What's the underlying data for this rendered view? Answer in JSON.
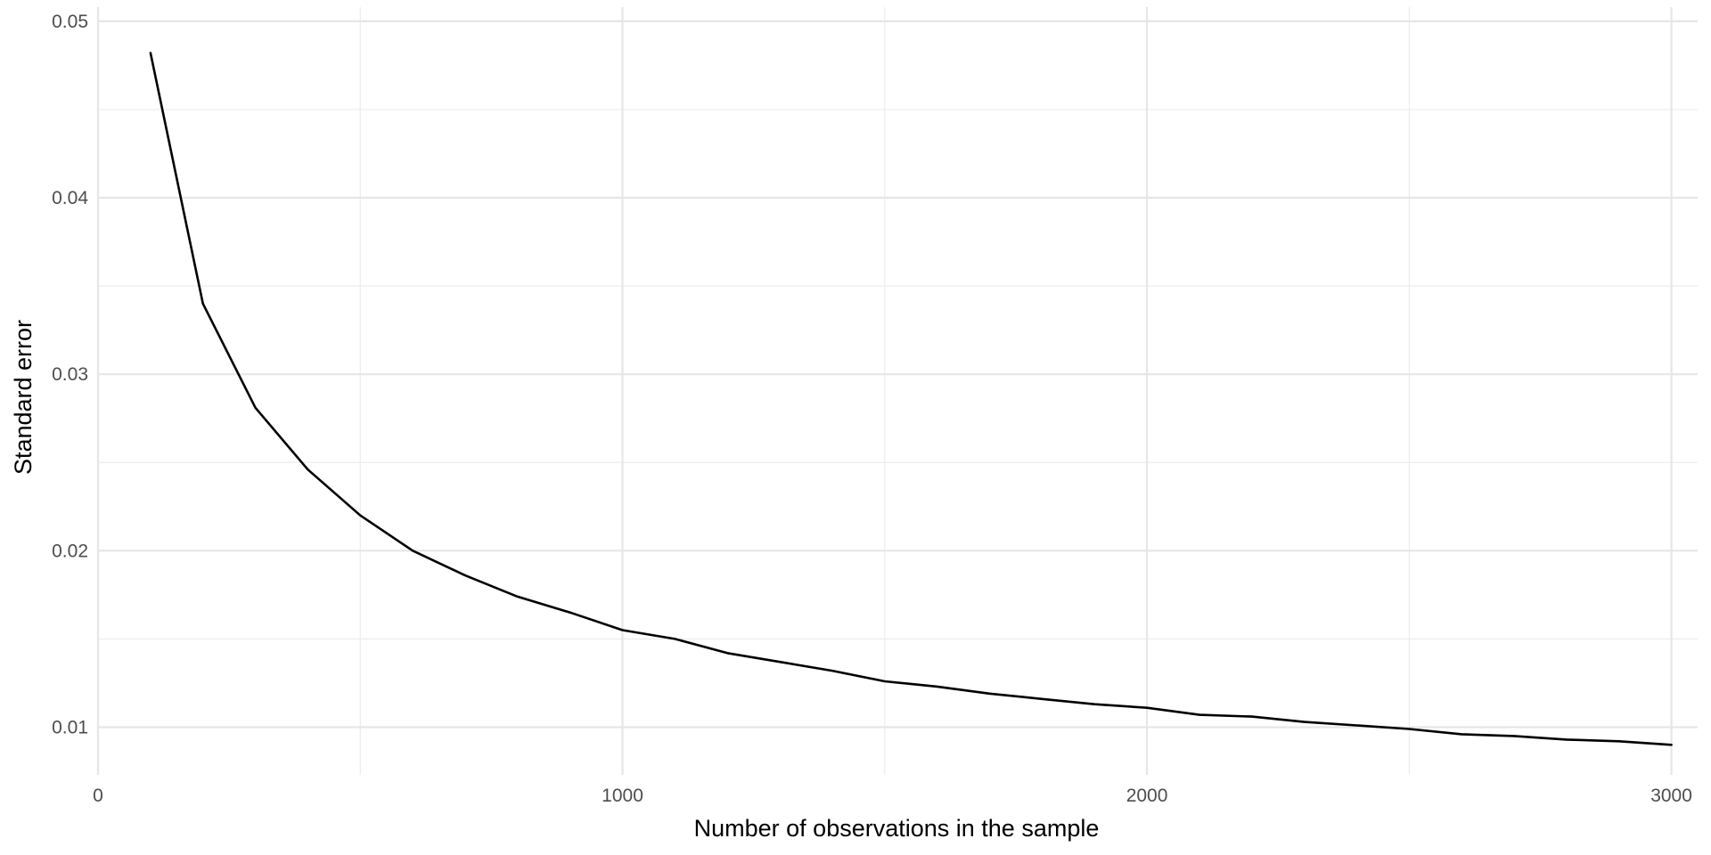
{
  "chart_data": {
    "type": "line",
    "title": "",
    "xlabel": "Number of observations in the sample",
    "ylabel": "Standard error",
    "xlim": [
      0,
      3050
    ],
    "ylim": [
      0.0073,
      0.0508
    ],
    "x_ticks": [
      0,
      1000,
      2000,
      3000
    ],
    "x_tick_labels": [
      "0",
      "1000",
      "2000",
      "3000"
    ],
    "y_ticks": [
      0.01,
      0.02,
      0.03,
      0.04,
      0.05
    ],
    "y_tick_labels": [
      "0.01",
      "0.02",
      "0.03",
      "0.04",
      "0.05"
    ],
    "grid": true,
    "legend": "none",
    "line_color": "#000000",
    "series": [
      {
        "x": [
          100,
          200,
          300,
          400,
          500,
          600,
          700,
          800,
          900,
          1000,
          1100,
          1200,
          1300,
          1400,
          1500,
          1600,
          1700,
          1800,
          1900,
          2000,
          2100,
          2200,
          2300,
          2400,
          2500,
          2600,
          2700,
          2800,
          2900,
          3000
        ],
        "values": [
          0.0482,
          0.034,
          0.0281,
          0.0246,
          0.022,
          0.02,
          0.0186,
          0.0174,
          0.0165,
          0.0155,
          0.015,
          0.0142,
          0.0137,
          0.0132,
          0.0126,
          0.0123,
          0.0119,
          0.0116,
          0.0113,
          0.0111,
          0.0107,
          0.0106,
          0.0103,
          0.0101,
          0.0099,
          0.0096,
          0.0095,
          0.0093,
          0.0092,
          0.009
        ]
      }
    ]
  }
}
